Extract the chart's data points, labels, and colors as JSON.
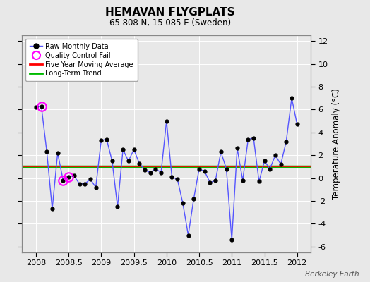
{
  "title": "HEMAVAN FLYGPLATS",
  "subtitle": "65.808 N, 15.085 E (Sweden)",
  "ylabel": "Temperature Anomaly (°C)",
  "watermark": "Berkeley Earth",
  "bg_color": "#e8e8e8",
  "plot_bg_color": "#e8e8e8",
  "ylim": [
    -6.5,
    12.5
  ],
  "xlim": [
    2007.79,
    2012.21
  ],
  "yticks": [
    -6,
    -4,
    -2,
    0,
    2,
    4,
    6,
    8,
    10,
    12
  ],
  "xticks": [
    2008,
    2008.5,
    2009,
    2009.5,
    2010,
    2010.5,
    2011,
    2011.5,
    2012
  ],
  "xticklabels": [
    "2008",
    "2008.5",
    "2009",
    "2009.5",
    "2010",
    "2010.5",
    "2011",
    "2011.5",
    "2012"
  ],
  "long_term_trend_y": 1.0,
  "raw_data": [
    [
      2008.0,
      6.2
    ],
    [
      2008.083,
      6.3
    ],
    [
      2008.167,
      2.3
    ],
    [
      2008.25,
      -2.7
    ],
    [
      2008.333,
      2.2
    ],
    [
      2008.417,
      -0.2
    ],
    [
      2008.5,
      0.1
    ],
    [
      2008.583,
      0.2
    ],
    [
      2008.667,
      -0.5
    ],
    [
      2008.75,
      -0.5
    ],
    [
      2008.833,
      -0.1
    ],
    [
      2008.917,
      -0.8
    ],
    [
      2009.0,
      3.3
    ],
    [
      2009.083,
      3.4
    ],
    [
      2009.167,
      1.5
    ],
    [
      2009.25,
      -2.5
    ],
    [
      2009.333,
      2.5
    ],
    [
      2009.417,
      1.5
    ],
    [
      2009.5,
      2.5
    ],
    [
      2009.583,
      1.3
    ],
    [
      2009.667,
      0.7
    ],
    [
      2009.75,
      0.5
    ],
    [
      2009.833,
      0.8
    ],
    [
      2009.917,
      0.5
    ],
    [
      2010.0,
      5.0
    ],
    [
      2010.083,
      0.1
    ],
    [
      2010.167,
      -0.1
    ],
    [
      2010.25,
      -2.2
    ],
    [
      2010.333,
      -5.0
    ],
    [
      2010.417,
      -1.8
    ],
    [
      2010.5,
      0.8
    ],
    [
      2010.583,
      0.6
    ],
    [
      2010.667,
      -0.4
    ],
    [
      2010.75,
      -0.2
    ],
    [
      2010.833,
      2.3
    ],
    [
      2010.917,
      0.8
    ],
    [
      2011.0,
      -5.4
    ],
    [
      2011.083,
      2.6
    ],
    [
      2011.167,
      -0.2
    ],
    [
      2011.25,
      3.4
    ],
    [
      2011.333,
      3.5
    ],
    [
      2011.417,
      -0.3
    ],
    [
      2011.5,
      1.5
    ],
    [
      2011.583,
      0.8
    ],
    [
      2011.667,
      2.0
    ],
    [
      2011.75,
      1.2
    ],
    [
      2011.833,
      3.2
    ],
    [
      2011.917,
      7.0
    ],
    [
      2012.0,
      4.7
    ]
  ],
  "qc_fail_points": [
    [
      2008.083,
      6.3
    ],
    [
      2008.417,
      -0.2
    ],
    [
      2008.5,
      0.1
    ]
  ],
  "line_color": "#5555ff",
  "marker_color": "#000000",
  "qc_color": "#ff00ff",
  "moving_avg_color": "#ff0000",
  "trend_color": "#00bb00",
  "trend_linewidth": 2.5,
  "moving_avg_linewidth": 1.5,
  "data_linewidth": 1.0,
  "marker_size": 3.5
}
